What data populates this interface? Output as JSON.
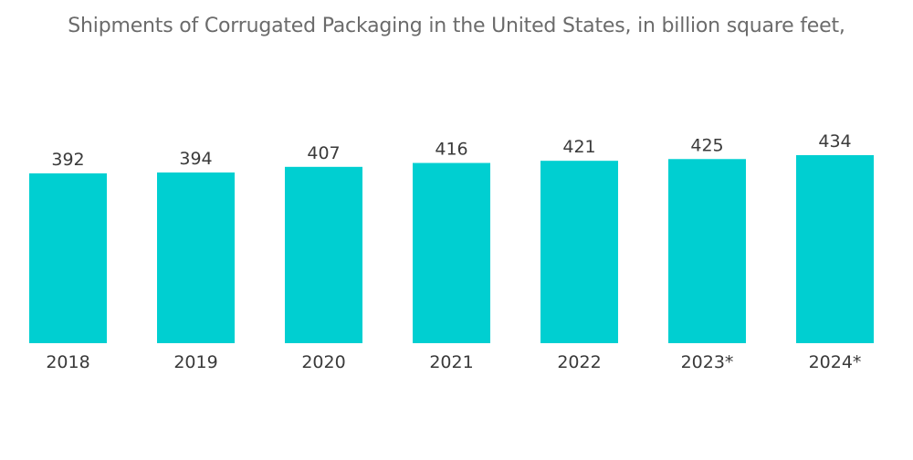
{
  "chart_data": {
    "type": "bar",
    "title": "Shipments of Corrugated Packaging in the United States, in billion square feet,",
    "xlabel": "",
    "ylabel": "",
    "categories": [
      "2018",
      "2019",
      "2020",
      "2021",
      "2022",
      "2023*",
      "2024*"
    ],
    "values": [
      392,
      394,
      407,
      416,
      421,
      425,
      434
    ],
    "ylim": [
      0,
      434
    ],
    "grid": false,
    "legend": "none",
    "bar_color": "#00cfd1",
    "text_color": "#3a3a3a",
    "title_color": "#6b6b6b"
  }
}
